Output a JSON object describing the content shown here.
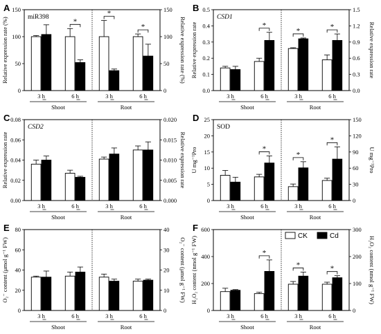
{
  "legend": {
    "ck": "CK",
    "cd": "Cd"
  },
  "chart_data": [
    {
      "id": "A",
      "type": "bar",
      "panel_label": "A",
      "title": "miR398",
      "title_italic": false,
      "ylabel": "Relative expression rate (%)",
      "y2label": "Relative expression rate (%)",
      "ylim": [
        0,
        150
      ],
      "yticks": [
        0,
        50,
        100,
        150
      ],
      "y2lim": [
        0,
        150
      ],
      "y2ticks": [
        0,
        50,
        100,
        150
      ],
      "groups": [
        {
          "time": "3 h",
          "tissue": "Shoot",
          "ck": 100,
          "ck_err": 2,
          "cd": 104,
          "cd_err": 18,
          "sig": false
        },
        {
          "time": "6 h",
          "tissue": "Shoot",
          "ck": 100,
          "ck_err": 15,
          "cd": 52,
          "cd_err": 5,
          "sig": true
        },
        {
          "time": "3 h",
          "tissue": "Root",
          "ck": 100,
          "ck_err": 30,
          "cd": 37,
          "cd_err": 3,
          "sig": true
        },
        {
          "time": "6 h",
          "tissue": "Root",
          "ck": 100,
          "ck_err": 5,
          "cd": 64,
          "cd_err": 22,
          "sig": true
        }
      ],
      "tissues": [
        "Shoot",
        "Root"
      ],
      "hasLegend": false
    },
    {
      "id": "B",
      "type": "bar",
      "panel_label": "B",
      "title": "CSD1",
      "title_italic": true,
      "ylabel": "Relative expression rate",
      "y2label": "Relative expression rate",
      "ylim": [
        0,
        0.5
      ],
      "yticks": [
        0,
        0.1,
        0.2,
        0.3,
        0.4,
        0.5
      ],
      "y2lim": [
        0,
        1.5
      ],
      "y2ticks": [
        0,
        0.3,
        0.6,
        0.9,
        1.2,
        1.5
      ],
      "groups": [
        {
          "time": "3 h",
          "tissue": "Shoot",
          "ck": 0.14,
          "ck_err": 0.01,
          "cd": 0.13,
          "cd_err": 0.02,
          "sig": false
        },
        {
          "time": "6 h",
          "tissue": "Shoot",
          "ck": 0.18,
          "ck_err": 0.02,
          "cd": 0.31,
          "cd_err": 0.05,
          "sig": true
        },
        {
          "time": "3 h",
          "tissue": "Root",
          "ck": 0.26,
          "ck_err": 0.005,
          "cd": 0.32,
          "cd_err": 0.005,
          "sig": true
        },
        {
          "time": "6 h",
          "tissue": "Root",
          "ck": 0.19,
          "ck_err": 0.03,
          "cd": 0.31,
          "cd_err": 0.04,
          "sig": true
        }
      ],
      "tissues": [
        "Shoot",
        "Root"
      ],
      "hasLegend": false
    },
    {
      "id": "C",
      "type": "bar",
      "panel_label": "C",
      "title": "CSD2",
      "title_italic": true,
      "ylabel": "Relative expression rate",
      "y2label": "Relative expression rate",
      "ylim": [
        0,
        0.08
      ],
      "yticks": [
        0,
        0.02,
        0.04,
        0.06,
        0.08
      ],
      "y2lim": [
        0,
        0.02
      ],
      "y2ticks": [
        0,
        0.005,
        0.01,
        0.015,
        0.02
      ],
      "groups": [
        {
          "time": "3 h",
          "tissue": "Shoot",
          "ck": 0.036,
          "ck_err": 0.004,
          "cd": 0.04,
          "cd_err": 0.004,
          "sig": false
        },
        {
          "time": "6 h",
          "tissue": "Shoot",
          "ck": 0.027,
          "ck_err": 0.003,
          "cd": 0.023,
          "cd_err": 0.001,
          "sig": false
        },
        {
          "time": "3 h",
          "tissue": "Root",
          "ck": 0.041,
          "ck_err": 0.002,
          "cd": 0.046,
          "cd_err": 0.006,
          "sig": false
        },
        {
          "time": "6 h",
          "tissue": "Root",
          "ck": 0.05,
          "ck_err": 0.004,
          "cd": 0.05,
          "cd_err": 0.008,
          "sig": false
        }
      ],
      "tissues": [
        "Shoot",
        "Root"
      ],
      "hasLegend": false
    },
    {
      "id": "D",
      "type": "bar",
      "panel_label": "D",
      "title": "SOD",
      "title_italic": false,
      "ylabel": "U mg⁻¹Pro",
      "y2label": "U mg⁻¹Pro",
      "ylim": [
        0,
        25
      ],
      "yticks": [
        0,
        5,
        10,
        15,
        20,
        25
      ],
      "y2lim": [
        0,
        150
      ],
      "y2ticks": [
        0,
        30,
        60,
        90,
        120,
        150
      ],
      "groups": [
        {
          "time": "3 h",
          "tissue": "Shoot",
          "ck": 7.8,
          "ck_err": 1.5,
          "cd": 5.7,
          "cd_err": 1.5,
          "sig": false
        },
        {
          "time": "6 h",
          "tissue": "Shoot",
          "ck": 7.3,
          "ck_err": 0.8,
          "cd": 11.6,
          "cd_err": 2.2,
          "sig": true
        },
        {
          "time": "3 h",
          "tissue": "Root",
          "ck": 4.3,
          "ck_err": 0.8,
          "cd": 10.1,
          "cd_err": 1.9,
          "sig": true
        },
        {
          "time": "6 h",
          "tissue": "Root",
          "ck": 6.2,
          "ck_err": 0.7,
          "cd": 12.8,
          "cd_err": 3.8,
          "sig": true
        }
      ],
      "tissues": [
        "Shoot",
        "Root"
      ],
      "hasLegend": false
    },
    {
      "id": "E",
      "type": "bar",
      "panel_label": "E",
      "title": "",
      "title_italic": false,
      "ylabel": "O₂⁻ content (μmol g⁻¹ FW)",
      "y2label": "O₂⁻ content (μmol g⁻¹ FW)",
      "ylim": [
        0,
        80
      ],
      "yticks": [
        0,
        20,
        40,
        60,
        80
      ],
      "y2lim": [
        0,
        40
      ],
      "y2ticks": [
        0,
        10,
        20,
        30,
        40
      ],
      "groups": [
        {
          "time": "3 h",
          "tissue": "Shoot",
          "ck": 33,
          "ck_err": 1,
          "cd": 33,
          "cd_err": 6,
          "sig": false
        },
        {
          "time": "6 h",
          "tissue": "Shoot",
          "ck": 34,
          "ck_err": 4,
          "cd": 38,
          "cd_err": 5,
          "sig": false
        },
        {
          "time": "3 h",
          "tissue": "Root",
          "ck": 33,
          "ck_err": 3,
          "cd": 29,
          "cd_err": 2,
          "sig": false
        },
        {
          "time": "6 h",
          "tissue": "Root",
          "ck": 29,
          "ck_err": 2,
          "cd": 30,
          "cd_err": 1,
          "sig": false
        }
      ],
      "tissues": [
        "Shoot",
        "Root"
      ],
      "hasLegend": false
    },
    {
      "id": "F",
      "type": "bar",
      "panel_label": "F",
      "title": "",
      "title_italic": false,
      "ylabel": "H₂O₂ content (nmol g⁻¹ FW)",
      "y2label": "H₂O₂ content (nmol g⁻¹ FW)",
      "ylim": [
        0,
        600
      ],
      "yticks": [
        0,
        200,
        400,
        600
      ],
      "y2lim": [
        0,
        300
      ],
      "y2ticks": [
        0,
        100,
        200,
        300
      ],
      "groups": [
        {
          "time": "3 h",
          "tissue": "Shoot",
          "ck": 140,
          "ck_err": 25,
          "cd": 150,
          "cd_err": 5,
          "sig": false
        },
        {
          "time": "6 h",
          "tissue": "Shoot",
          "ck": 125,
          "ck_err": 10,
          "cd": 290,
          "cd_err": 85,
          "sig": true
        },
        {
          "time": "3 h",
          "tissue": "Root",
          "ck": 195,
          "ck_err": 20,
          "cd": 255,
          "cd_err": 30,
          "sig": true
        },
        {
          "time": "6 h",
          "tissue": "Root",
          "ck": 195,
          "ck_err": 15,
          "cd": 243,
          "cd_err": 15,
          "sig": true
        }
      ],
      "tissues": [
        "Shoot",
        "Root"
      ],
      "hasLegend": true
    }
  ]
}
